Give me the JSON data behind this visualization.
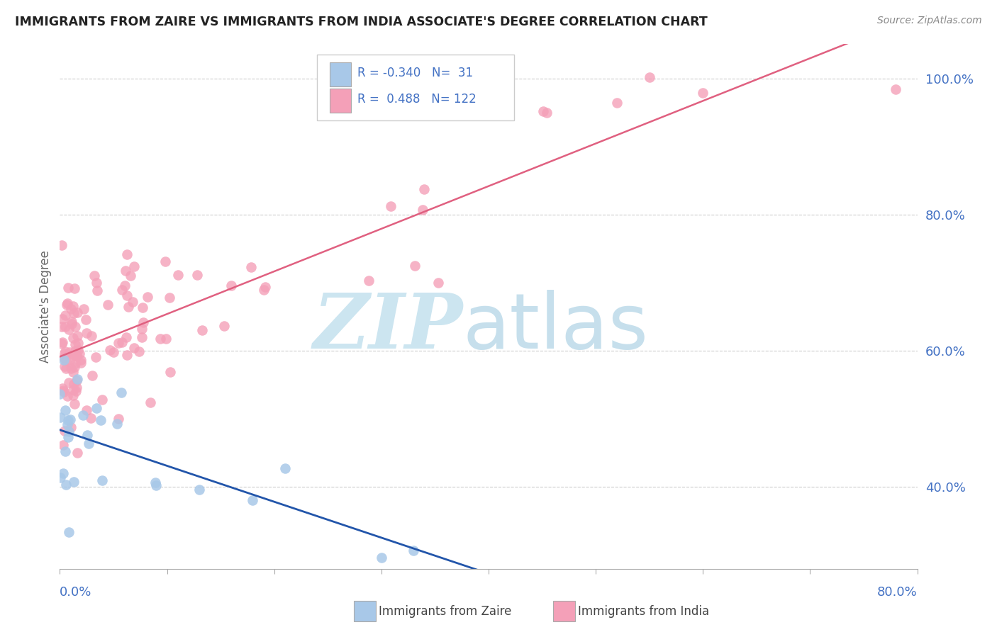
{
  "title": "IMMIGRANTS FROM ZAIRE VS IMMIGRANTS FROM INDIA ASSOCIATE'S DEGREE CORRELATION CHART",
  "source": "Source: ZipAtlas.com",
  "ylabel": "Associate's Degree",
  "x_lim": [
    0.0,
    0.8
  ],
  "y_lim": [
    0.28,
    1.05
  ],
  "y_ticks": [
    0.4,
    0.6,
    0.8,
    1.0
  ],
  "y_tick_labels": [
    "40.0%",
    "60.0%",
    "80.0%",
    "100.0%"
  ],
  "legend_zaire_R": -0.34,
  "legend_zaire_N": 31,
  "legend_india_R": 0.488,
  "legend_india_N": 122,
  "label_zaire": "Immigrants from Zaire",
  "label_india": "Immigrants from India",
  "color_zaire_scatter": "#a8c8e8",
  "color_zaire_line": "#2255aa",
  "color_india_scatter": "#f4a0b8",
  "color_india_line": "#e06080",
  "grid_color": "#cccccc",
  "title_color": "#222222",
  "tick_color": "#4472c4",
  "source_color": "#888888"
}
